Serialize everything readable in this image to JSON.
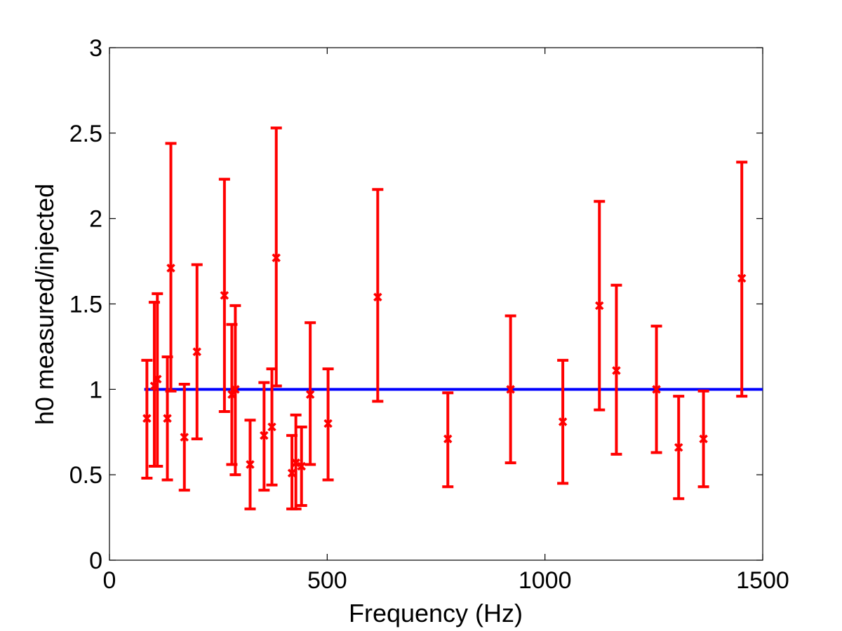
{
  "chart_data": {
    "type": "scatter",
    "title": "",
    "xlabel": "Frequency (Hz)",
    "ylabel": "h0 measured/injected",
    "xlim": [
      0,
      1500
    ],
    "ylim": [
      0,
      3
    ],
    "xticks": [
      0,
      500,
      1000,
      1500
    ],
    "yticks": [
      0,
      0.5,
      1,
      1.5,
      2,
      2.5,
      3
    ],
    "xtick_labels": [
      "0",
      "500",
      "1000",
      "1500"
    ],
    "ytick_labels": [
      "0",
      "0.5",
      "1",
      "1.5",
      "2",
      "2.5",
      "3"
    ],
    "grid": false,
    "reference_line": {
      "y": 1,
      "x": [
        80,
        1500
      ],
      "color": "#0000ff"
    },
    "series": [
      {
        "color": "#ff0000",
        "marker": "x",
        "points": [
          {
            "x": 86,
            "y": 0.83,
            "low": 0.48,
            "high": 1.17
          },
          {
            "x": 103,
            "y": 1.02,
            "low": 0.55,
            "high": 1.51
          },
          {
            "x": 110,
            "y": 1.06,
            "low": 0.55,
            "high": 1.56
          },
          {
            "x": 133,
            "y": 0.83,
            "low": 0.47,
            "high": 1.19
          },
          {
            "x": 141,
            "y": 1.71,
            "low": 0.99,
            "high": 2.44
          },
          {
            "x": 172,
            "y": 0.72,
            "low": 0.41,
            "high": 1.03
          },
          {
            "x": 201,
            "y": 1.22,
            "low": 0.71,
            "high": 1.73
          },
          {
            "x": 264,
            "y": 1.55,
            "low": 0.87,
            "high": 2.23
          },
          {
            "x": 281,
            "y": 0.97,
            "low": 0.56,
            "high": 1.38
          },
          {
            "x": 289,
            "y": 1.0,
            "low": 0.5,
            "high": 1.49
          },
          {
            "x": 323,
            "y": 0.56,
            "low": 0.3,
            "high": 0.82
          },
          {
            "x": 355,
            "y": 0.73,
            "low": 0.41,
            "high": 1.04
          },
          {
            "x": 373,
            "y": 0.78,
            "low": 0.44,
            "high": 1.12
          },
          {
            "x": 383,
            "y": 1.77,
            "low": 1.02,
            "high": 2.53
          },
          {
            "x": 419,
            "y": 0.51,
            "low": 0.3,
            "high": 0.73
          },
          {
            "x": 428,
            "y": 0.57,
            "low": 0.3,
            "high": 0.85
          },
          {
            "x": 441,
            "y": 0.55,
            "low": 0.32,
            "high": 0.78
          },
          {
            "x": 461,
            "y": 0.97,
            "low": 0.56,
            "high": 1.39
          },
          {
            "x": 502,
            "y": 0.8,
            "low": 0.47,
            "high": 1.12
          },
          {
            "x": 616,
            "y": 1.54,
            "low": 0.93,
            "high": 2.17
          },
          {
            "x": 777,
            "y": 0.71,
            "low": 0.43,
            "high": 0.98
          },
          {
            "x": 921,
            "y": 1.0,
            "low": 0.57,
            "high": 1.43
          },
          {
            "x": 1041,
            "y": 0.81,
            "low": 0.45,
            "high": 1.17
          },
          {
            "x": 1125,
            "y": 1.49,
            "low": 0.88,
            "high": 2.1
          },
          {
            "x": 1164,
            "y": 1.11,
            "low": 0.62,
            "high": 1.61
          },
          {
            "x": 1256,
            "y": 1.0,
            "low": 0.63,
            "high": 1.37
          },
          {
            "x": 1307,
            "y": 0.66,
            "low": 0.36,
            "high": 0.96
          },
          {
            "x": 1364,
            "y": 0.71,
            "low": 0.43,
            "high": 0.99
          },
          {
            "x": 1452,
            "y": 1.65,
            "low": 0.96,
            "high": 2.33
          }
        ]
      }
    ]
  }
}
